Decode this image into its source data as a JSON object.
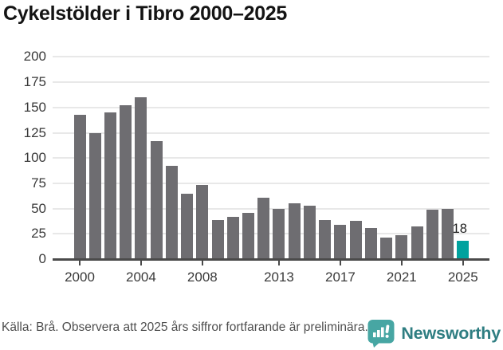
{
  "title": "Cykelstölder i Tibro 2000–2025",
  "chart_data": {
    "type": "bar",
    "title": "Cykelstölder i Tibro 2000–2025",
    "categories": [
      "2000",
      "2001",
      "2002",
      "2003",
      "2004",
      "2005",
      "2006",
      "2007",
      "2008",
      "2009",
      "2010",
      "2011",
      "2012",
      "2013",
      "2014",
      "2015",
      "2016",
      "2017",
      "2018",
      "2019",
      "2020",
      "2021",
      "2022",
      "2023",
      "2024",
      "2025"
    ],
    "values": [
      143,
      125,
      145,
      152,
      160,
      117,
      92,
      65,
      73,
      39,
      42,
      46,
      61,
      50,
      55,
      53,
      39,
      34,
      38,
      31,
      21,
      24,
      32,
      49,
      50,
      18
    ],
    "highlight_category": "2025",
    "data_labels": {
      "2025": "18"
    },
    "x_tick_labels": [
      "2000",
      "2004",
      "2008",
      "2013",
      "2017",
      "2021",
      "2025"
    ],
    "y_ticks": [
      0,
      25,
      50,
      75,
      100,
      125,
      150,
      175,
      200
    ],
    "ylim": [
      0,
      200
    ],
    "grid": true,
    "legend": "none",
    "colors": {
      "bar": "#6e6d71",
      "highlight": "#00a29e",
      "gridline": "#e8e8e8",
      "axis": "#4a4a4a",
      "tick_text": "#3a3a3a"
    }
  },
  "footer": {
    "source_note": "Källa: Brå. Observera att 2025 års siffror fortfarande är preliminära.",
    "logo": {
      "text": "Newsworthy",
      "icon": "newsworthy-speech-bubble-chart-icon",
      "icon_color": "#47a6a3",
      "text_color": "#2f7e82"
    }
  }
}
